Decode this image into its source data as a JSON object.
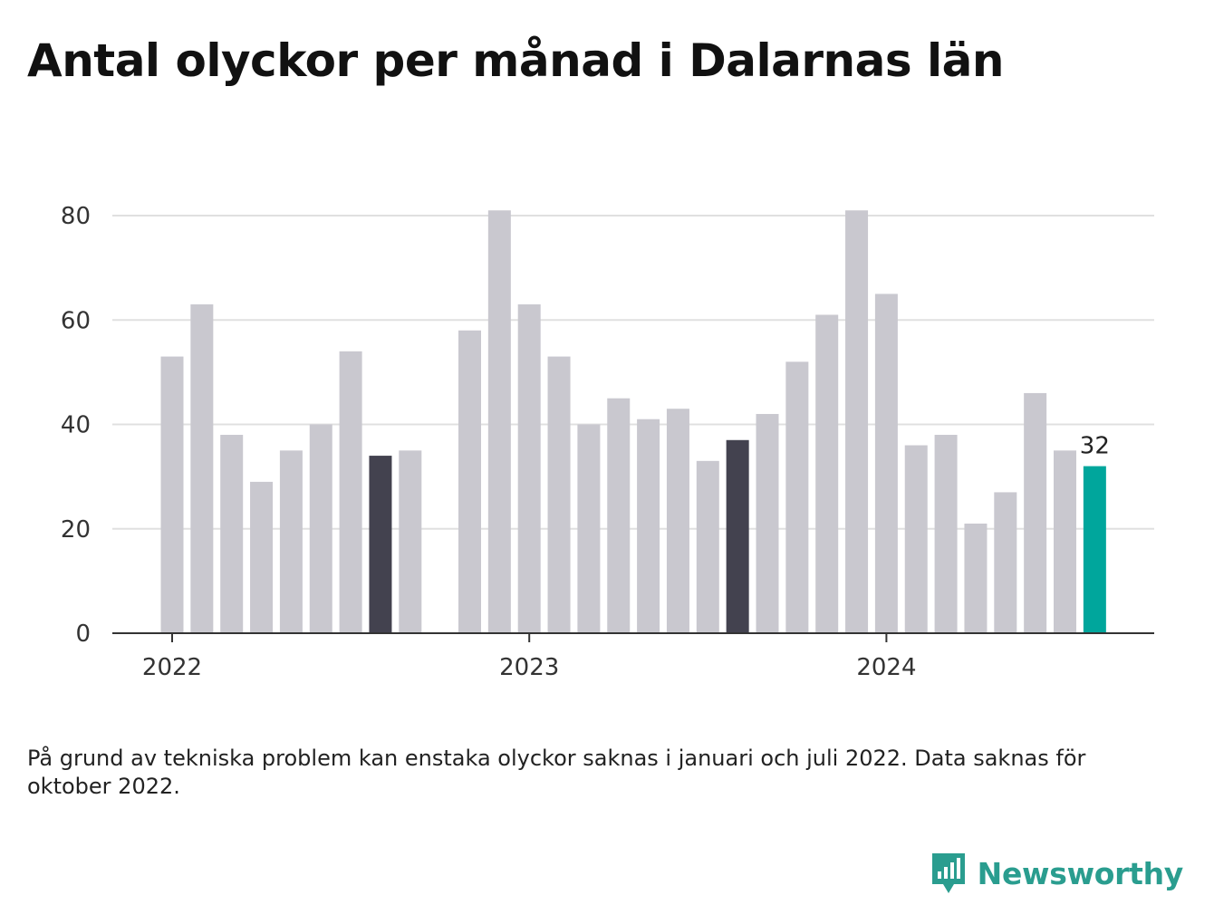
{
  "title": "Antal olyckor per månad i Dalarnas län",
  "note": "På grund av tekniska problem kan enstaka olyckor saknas i januari och juli 2022. Data saknas för oktober 2022.",
  "brand": {
    "name": "Newsworthy",
    "icon": "newsworthy-logo-icon"
  },
  "colors": {
    "bar": "#c9c8cf",
    "highlight": "#43424f",
    "latest": "#00a69c",
    "grid": "#e0e0e0",
    "axis": "#333333"
  },
  "chart_data": {
    "type": "bar",
    "title": "Antal olyckor per månad i Dalarnas län",
    "xlabel": "",
    "ylabel": "",
    "ylim": [
      0,
      80
    ],
    "yticks": [
      0,
      20,
      40,
      60,
      80
    ],
    "xticks": [
      "2022",
      "2023",
      "2024"
    ],
    "grid": true,
    "months": [
      "2022-01",
      "2022-02",
      "2022-03",
      "2022-04",
      "2022-05",
      "2022-06",
      "2022-07",
      "2022-08",
      "2022-09",
      "2022-10",
      "2022-11",
      "2022-12",
      "2023-01",
      "2023-02",
      "2023-03",
      "2023-04",
      "2023-05",
      "2023-06",
      "2023-07",
      "2023-08",
      "2023-09",
      "2023-10",
      "2023-11",
      "2023-12",
      "2024-01",
      "2024-02",
      "2024-03",
      "2024-04",
      "2024-05",
      "2024-06",
      "2024-07",
      "2024-08"
    ],
    "values": [
      53,
      63,
      38,
      29,
      35,
      40,
      54,
      34,
      35,
      null,
      58,
      81,
      63,
      53,
      40,
      45,
      41,
      43,
      33,
      37,
      42,
      52,
      61,
      81,
      65,
      36,
      38,
      21,
      27,
      46,
      35,
      32
    ],
    "highlighted": [
      "2022-08",
      "2023-08"
    ],
    "latest": "2024-08",
    "data_labels": [
      {
        "month": "2024-08",
        "text": "32"
      }
    ]
  }
}
